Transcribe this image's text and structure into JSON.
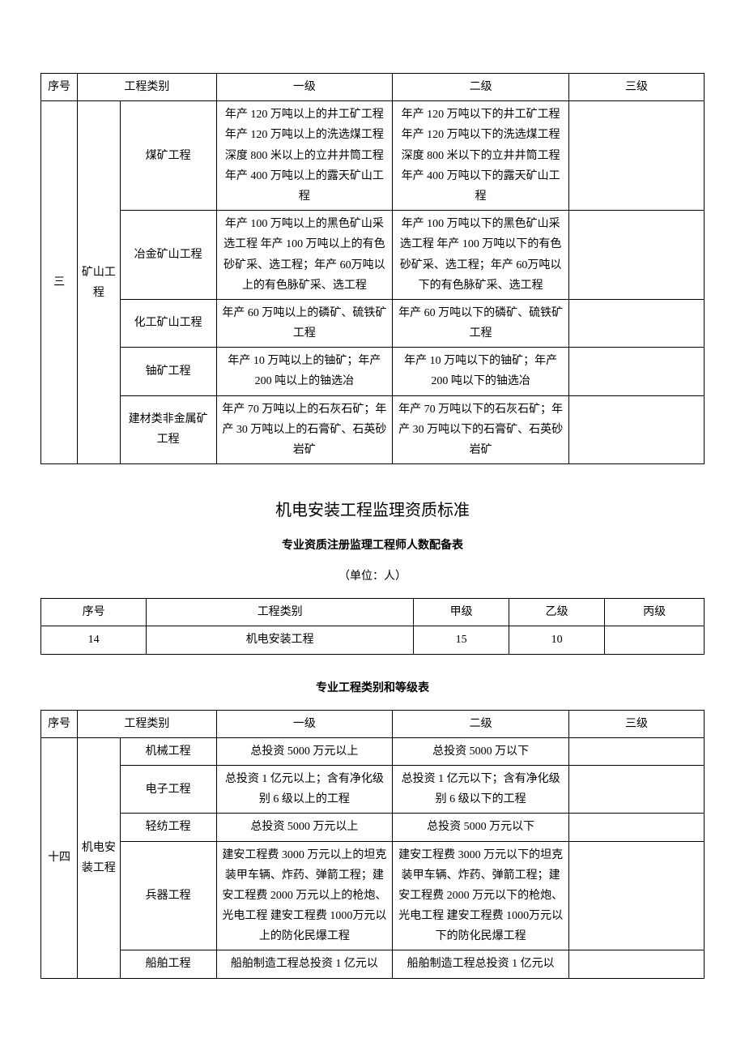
{
  "table1": {
    "headers": {
      "seq": "序号",
      "cat": "工程类别",
      "l1": "一级",
      "l2": "二级",
      "l3": "三级"
    },
    "group_seq": "三",
    "group_cat": "矿山工程",
    "rows": [
      {
        "name": "煤矿工程",
        "l1": "年产 120 万吨以上的井工矿工程 年产 120 万吨以上的洗选煤工程 深度 800 米以上的立井井筒工程 年产 400 万吨以上的露天矿山工程",
        "l2": "年产 120 万吨以下的井工矿工程 年产 120 万吨以下的洗选煤工程 深度 800 米以下的立井井筒工程 年产 400 万吨以下的露天矿山工程",
        "l3": ""
      },
      {
        "name": "冶金矿山工程",
        "l1": "年产 100 万吨以上的黑色矿山采选工程 年产 100 万吨以上的有色砂矿采、选工程；年产 60万吨以上的有色脉矿采、选工程",
        "l2": "年产 100 万吨以下的黑色矿山采选工程 年产 100 万吨以下的有色砂矿采、选工程；年产 60万吨以下的有色脉矿采、选工程",
        "l3": ""
      },
      {
        "name": "化工矿山工程",
        "l1": "年产 60 万吨以上的磷矿、硫铁矿工程",
        "l2": "年产 60 万吨以下的磷矿、硫铁矿工程",
        "l3": ""
      },
      {
        "name": "铀矿工程",
        "l1": "年产 10 万吨以上的铀矿；年产200 吨以上的铀选冶",
        "l2": "年产 10 万吨以下的铀矿；年产200 吨以下的铀选冶",
        "l3": ""
      },
      {
        "name": "建材类非金属矿工程",
        "l1": "年产 70 万吨以上的石灰石矿；年产 30 万吨以上的石膏矿、石英砂岩矿",
        "l2": "年产 70 万吨以下的石灰石矿；年产 30 万吨以下的石膏矿、石英砂岩矿",
        "l3": ""
      }
    ]
  },
  "section2": {
    "title": "机电安装工程监理资质标准",
    "subtitle": "专业资质注册监理工程师人数配备表",
    "unit": "（单位：人）"
  },
  "table2": {
    "headers": {
      "seq": "序号",
      "cat": "工程类别",
      "a": "甲级",
      "b": "乙级",
      "c": "丙级"
    },
    "row": {
      "seq": "14",
      "cat": "机电安装工程",
      "a": "15",
      "b": "10",
      "c": ""
    }
  },
  "section3": {
    "subtitle": "专业工程类别和等级表"
  },
  "table3": {
    "headers": {
      "seq": "序号",
      "cat": "工程类别",
      "l1": "一级",
      "l2": "二级",
      "l3": "三级"
    },
    "group_seq": "十四",
    "group_cat": "机电安装工程",
    "rows": [
      {
        "name": "机械工程",
        "l1": "总投资 5000 万元以上",
        "l2": "总投资 5000 万以下",
        "l3": ""
      },
      {
        "name": "电子工程",
        "l1": "总投资 1 亿元以上；含有净化级别 6 级以上的工程",
        "l2": "总投资 1 亿元以下；含有净化级别 6 级以下的工程",
        "l3": ""
      },
      {
        "name": "轻纺工程",
        "l1": "总投资 5000 万元以上",
        "l2": "总投资 5000 万元以下",
        "l3": ""
      },
      {
        "name": "兵器工程",
        "l1": "建安工程费 3000 万元以上的坦克装甲车辆、炸药、弹箭工程；建安工程费 2000 万元以上的枪炮、光电工程 建安工程费 1000万元以上的防化民爆工程",
        "l2": "建安工程费 3000 万元以下的坦克装甲车辆、炸药、弹箭工程；建安工程费 2000 万元以下的枪炮、光电工程 建安工程费 1000万元以下的防化民爆工程",
        "l3": ""
      },
      {
        "name": "船舶工程",
        "l1": "船舶制造工程总投资 1 亿元以",
        "l2": "船舶制造工程总投资 1 亿元以",
        "l3": ""
      }
    ]
  }
}
